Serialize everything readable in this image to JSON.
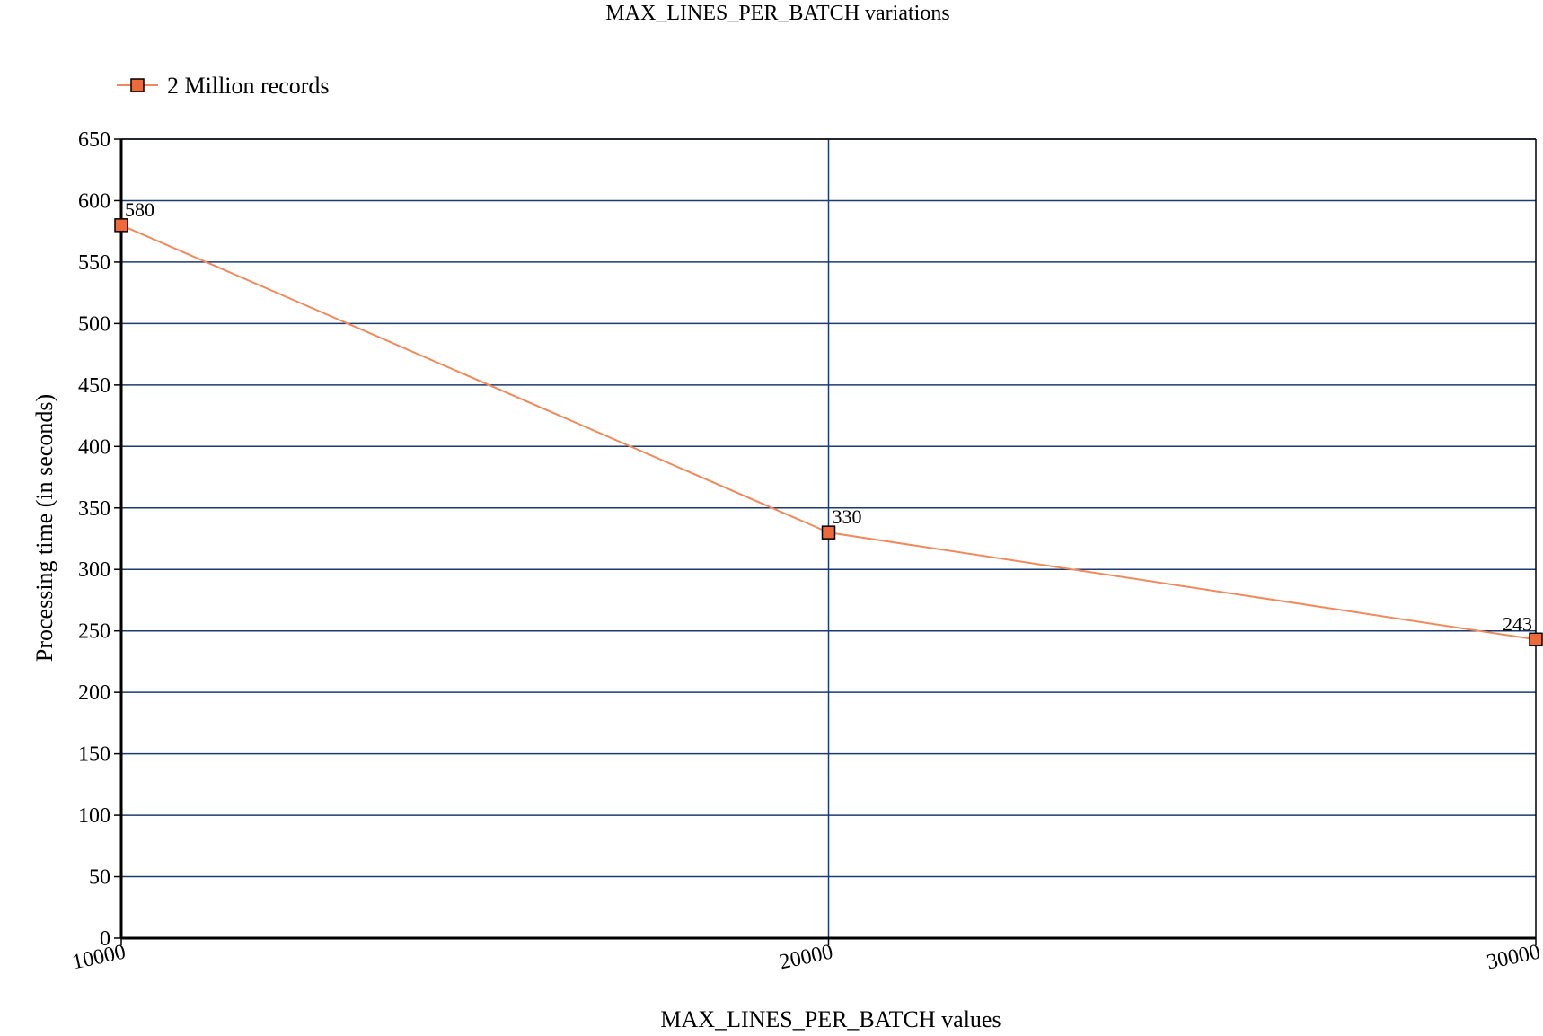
{
  "chart_data": {
    "type": "line",
    "title": "MAX_LINES_PER_BATCH variations",
    "xlabel": "MAX_LINES_PER_BATCH values",
    "ylabel": "Processing time (in seconds)",
    "categories": [
      "10000",
      "20000",
      "30000"
    ],
    "series": [
      {
        "name": "2 Million records",
        "values": [
          580,
          330,
          243
        ],
        "labels": [
          "580",
          "330",
          "243"
        ],
        "color": "#f08a5d",
        "marker_color": "#ee6a3a"
      }
    ],
    "ylim": [
      0,
      650
    ],
    "yticks": [
      "0",
      "50",
      "100",
      "150",
      "200",
      "250",
      "300",
      "350",
      "400",
      "450",
      "500",
      "550",
      "600",
      "650"
    ],
    "grid": true,
    "grid_color": "#1f3a6e",
    "legend_position": "top-left"
  }
}
